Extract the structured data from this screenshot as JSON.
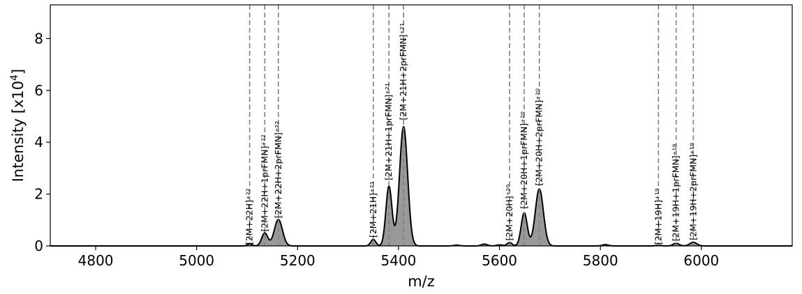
{
  "chart_data": {
    "type": "area",
    "title": "",
    "xlabel": "m/z",
    "ylabel_prefix": "Intensity [x10",
    "ylabel_exp": "4",
    "ylabel_suffix": "]",
    "xlim": [
      4710,
      6180
    ],
    "ylim": [
      0,
      9.3
    ],
    "xticks": [
      "4800",
      "5000",
      "5200",
      "5400",
      "5600",
      "5800",
      "6000"
    ],
    "yticks": [
      "0",
      "2",
      "4",
      "6",
      "8"
    ],
    "grid": false,
    "fill_color": "#999999",
    "line_color": "#000000",
    "peaks": [
      {
        "mz": 5105,
        "height": 0.07,
        "width": 5
      },
      {
        "mz": 5135,
        "height": 0.5,
        "width": 6
      },
      {
        "mz": 5162,
        "height": 1.02,
        "width": 8
      },
      {
        "mz": 5350,
        "height": 0.25,
        "width": 5
      },
      {
        "mz": 5381,
        "height": 2.3,
        "width": 6
      },
      {
        "mz": 5410,
        "height": 4.6,
        "width": 8
      },
      {
        "mz": 5515,
        "height": 0.03,
        "width": 6
      },
      {
        "mz": 5570,
        "height": 0.07,
        "width": 6
      },
      {
        "mz": 5600,
        "height": 0.04,
        "width": 6
      },
      {
        "mz": 5620,
        "height": 0.13,
        "width": 5
      },
      {
        "mz": 5649,
        "height": 1.28,
        "width": 6
      },
      {
        "mz": 5679,
        "height": 2.2,
        "width": 8
      },
      {
        "mz": 5810,
        "height": 0.05,
        "width": 6
      },
      {
        "mz": 5915,
        "height": 0.03,
        "width": 5
      },
      {
        "mz": 5950,
        "height": 0.1,
        "width": 6
      },
      {
        "mz": 5984,
        "height": 0.14,
        "width": 7
      }
    ],
    "annotations": [
      {
        "mz": 5105,
        "label": "[2M+22H]⁺²²",
        "label_y": 0.05
      },
      {
        "mz": 5135,
        "label": "[2M+22H+1prFMN]⁺²²",
        "label_y": 0.55
      },
      {
        "mz": 5162,
        "label": "[2M+22H+2prFMN]⁺²²",
        "label_y": 1.07
      },
      {
        "mz": 5350,
        "label": "[2M+21H]⁺²¹",
        "label_y": 0.32
      },
      {
        "mz": 5381,
        "label": "[2M+21H+1prFMN]⁺²¹",
        "label_y": 2.53
      },
      {
        "mz": 5410,
        "label": "[2M+21H+2prFMN]⁺²¹",
        "label_y": 4.85
      },
      {
        "mz": 5620,
        "label": "[2M+20H]⁺²⁰",
        "label_y": 0.2
      },
      {
        "mz": 5649,
        "label": "[2M+20H+1prFMN]⁺²⁰",
        "label_y": 1.43
      },
      {
        "mz": 5679,
        "label": "[2M+20H+2prFMN]⁺²⁰",
        "label_y": 2.32
      },
      {
        "mz": 5915,
        "label": "[2M+19H]⁺¹⁹",
        "label_y": 0.05
      },
      {
        "mz": 5950,
        "label": "[2M+19H+1prFMN]⁺¹⁹",
        "label_y": 0.18
      },
      {
        "mz": 5984,
        "label": "[2M+19H+2prFMN]⁺¹⁹",
        "label_y": 0.22
      }
    ]
  }
}
